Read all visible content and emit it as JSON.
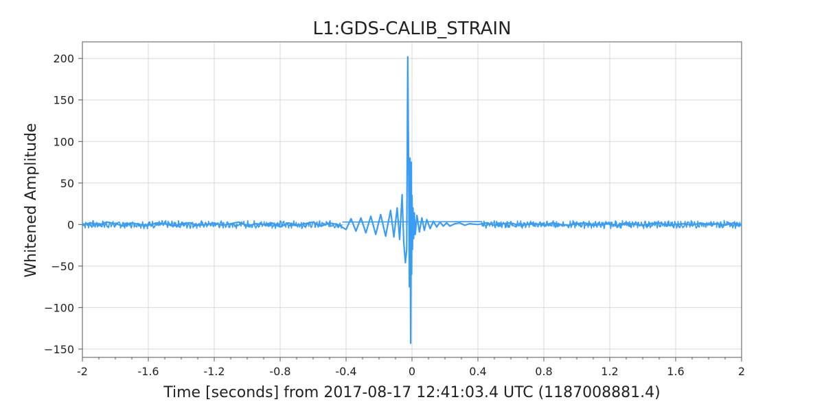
{
  "chart_data": {
    "type": "line",
    "title": "L1:GDS-CALIB_STRAIN",
    "xlabel": "Time [seconds] from 2017-08-17 12:41:03.4 UTC (1187008881.4)",
    "ylabel": "Whitened Amplitude",
    "xlim": [
      -2,
      2
    ],
    "ylim": [
      -160,
      220
    ],
    "x_ticks": [
      -2,
      -1.6,
      -1.2,
      -0.8,
      -0.4,
      0,
      0.4,
      0.8,
      1.2,
      1.6,
      2
    ],
    "x_tick_labels": [
      "-2",
      "-1.6",
      "-1.2",
      "-0.8",
      "-0.4",
      "0",
      "0.4",
      "0.8",
      "1.2",
      "1.6",
      "2"
    ],
    "y_ticks": [
      -150,
      -100,
      -50,
      0,
      50,
      100,
      150,
      200
    ],
    "y_tick_labels": [
      "−150",
      "−100",
      "−50",
      "0",
      "50",
      "100",
      "150",
      "200"
    ],
    "grid": true,
    "series": [
      {
        "color": "#3a9df5",
        "x": [
          -2.0,
          -1.95,
          -1.9,
          -1.85,
          -1.8,
          -1.75,
          -1.7,
          -1.65,
          -1.6,
          -1.55,
          -1.5,
          -1.45,
          -1.4,
          -1.35,
          -1.3,
          -1.25,
          -1.2,
          -1.15,
          -1.1,
          -1.05,
          -1.0,
          -0.95,
          -0.9,
          -0.85,
          -0.8,
          -0.75,
          -0.7,
          -0.65,
          -0.6,
          -0.55,
          -0.5,
          -0.45,
          -0.4,
          -0.37,
          -0.34,
          -0.31,
          -0.28,
          -0.25,
          -0.22,
          -0.19,
          -0.16,
          -0.13,
          -0.11,
          -0.09,
          -0.075,
          -0.06,
          -0.05,
          -0.04,
          -0.032,
          -0.026,
          -0.02,
          -0.016,
          -0.012,
          -0.008,
          -0.004,
          -0.002,
          0.0,
          0.003,
          0.006,
          0.01,
          0.014,
          0.02,
          0.03,
          0.045,
          0.06,
          0.075,
          0.09,
          0.11,
          0.13,
          0.15,
          0.17,
          0.19,
          0.21,
          0.23,
          0.26,
          0.29,
          0.32,
          0.35,
          0.4,
          0.45,
          0.5,
          0.55,
          0.6,
          0.65,
          0.7,
          0.75,
          0.8,
          0.85,
          0.9,
          0.95,
          1.0,
          1.05,
          1.1,
          1.15,
          1.2,
          1.25,
          1.3,
          1.35,
          1.4,
          1.45,
          1.5,
          1.55,
          1.6,
          1.65,
          1.7,
          1.75,
          1.8,
          1.85,
          1.9,
          1.95,
          2.0
        ],
        "y": [
          0,
          2,
          -1,
          3,
          1,
          -2,
          2,
          0,
          -1,
          2,
          1,
          -2,
          1,
          2,
          -1,
          0,
          2,
          -1,
          1,
          3,
          -2,
          1,
          0,
          2,
          -3,
          2,
          -1,
          1,
          3,
          -2,
          2,
          0,
          -6,
          7,
          -8,
          8,
          -10,
          10,
          -12,
          12,
          -14,
          17,
          -15,
          20,
          -18,
          36,
          -22,
          -46,
          -30,
          202,
          60,
          -75,
          80,
          -143,
          75,
          -60,
          35,
          -30,
          20,
          -17,
          14,
          -12,
          11,
          -9,
          8,
          -7,
          6,
          -5,
          4,
          -3,
          3,
          -2,
          2,
          -2,
          1,
          2,
          -1,
          1,
          0,
          2,
          -1,
          1,
          2,
          -1,
          0,
          1,
          -1,
          2,
          0,
          -1,
          1,
          2,
          -1,
          0,
          1,
          -2,
          2,
          0,
          -1,
          1,
          2,
          -1,
          0,
          1,
          -1,
          2,
          0,
          1,
          -1,
          2,
          0
        ]
      }
    ]
  }
}
